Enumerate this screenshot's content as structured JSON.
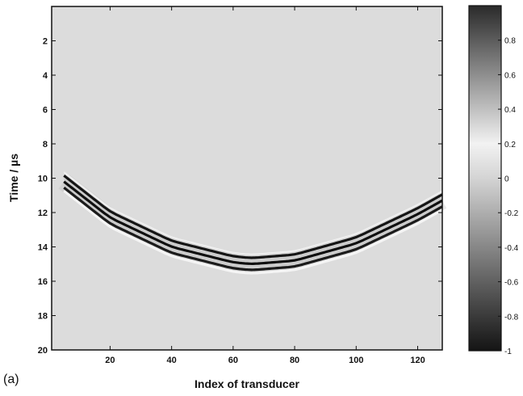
{
  "chart_data": {
    "type": "heatmap",
    "panel_label": "(a)",
    "xlabel": "Index of transducer",
    "ylabel": "Time / µs",
    "xlim": [
      1,
      128
    ],
    "ylim": [
      0,
      20
    ],
    "y_inverted": true,
    "x_ticks": [
      20,
      40,
      60,
      80,
      100,
      120
    ],
    "x_tick_labels": [
      "20",
      "40",
      "60",
      "80",
      "100",
      "120"
    ],
    "y_ticks": [
      2,
      4,
      6,
      8,
      10,
      12,
      14,
      16,
      18,
      20
    ],
    "y_tick_labels": [
      "2",
      "4",
      "6",
      "8",
      "10",
      "12",
      "14",
      "16",
      "18",
      "20"
    ],
    "colormap": "gray",
    "clim": [
      -1,
      1
    ],
    "colorbar_ticks": [
      0.8,
      0.6,
      0.4,
      0.2,
      0,
      -0.2,
      -0.4,
      -0.6,
      -0.8,
      -1
    ],
    "colorbar_tick_labels": [
      "0.8",
      "0.6",
      "0.4",
      "0.2",
      "0",
      "-0.2",
      "-0.4",
      "-0.6",
      "-0.8",
      "-1"
    ],
    "background_value": 0,
    "wavefront": {
      "description": "hyperbolic arrival curve (time of arrival vs transducer index)",
      "apex_index": 66,
      "apex_time_us": 15.0,
      "points": [
        [
          5,
          10.2
        ],
        [
          20,
          12.3
        ],
        [
          40,
          14.0
        ],
        [
          60,
          14.9
        ],
        [
          66,
          15.0
        ],
        [
          80,
          14.8
        ],
        [
          100,
          13.8
        ],
        [
          120,
          12.1
        ],
        [
          128,
          11.3
        ]
      ],
      "band_offsets_us": [
        -0.35,
        0,
        0.35
      ],
      "band_values": [
        -0.9,
        -0.95,
        -0.85
      ]
    }
  }
}
